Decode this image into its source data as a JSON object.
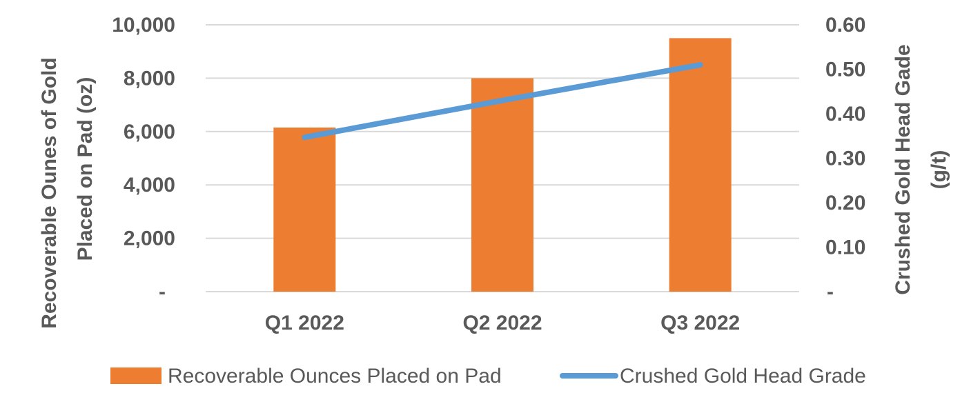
{
  "chart_data": {
    "type": "bar",
    "categories": [
      "Q1 2022",
      "Q2 2022",
      "Q3 2022"
    ],
    "series": [
      {
        "name": "Recoverable Ounces Placed on Pad",
        "type": "bar",
        "axis": "left",
        "color": "#ED7D31",
        "values": [
          6150,
          8000,
          9500
        ]
      },
      {
        "name": "Crushed Gold Head Grade",
        "type": "line",
        "axis": "right",
        "color": "#5B9BD5",
        "values": [
          0.347,
          0.43,
          0.51
        ]
      }
    ],
    "left_axis": {
      "label_lines": [
        "Recoverable Ounes of Gold",
        "Placed on Pad (oz)"
      ],
      "ylim": [
        0,
        10000
      ],
      "ticks": [
        {
          "value": 0,
          "label": "-"
        },
        {
          "value": 2000,
          "label": "2,000"
        },
        {
          "value": 4000,
          "label": "4,000"
        },
        {
          "value": 6000,
          "label": "6,000"
        },
        {
          "value": 8000,
          "label": "8,000"
        },
        {
          "value": 10000,
          "label": "10,000"
        }
      ]
    },
    "right_axis": {
      "label_lines": [
        "Crushed Gold Head Gade",
        "(g/t)"
      ],
      "ylim": [
        0,
        0.6
      ],
      "ticks": [
        {
          "value": 0,
          "label": "-"
        },
        {
          "value": 0.1,
          "label": "0.10"
        },
        {
          "value": 0.2,
          "label": "0.20"
        },
        {
          "value": 0.3,
          "label": "0.30"
        },
        {
          "value": 0.4,
          "label": "0.40"
        },
        {
          "value": 0.5,
          "label": "0.50"
        },
        {
          "value": 0.6,
          "label": "0.60"
        }
      ]
    },
    "grid": true,
    "gridline_color": "#D9D9D9",
    "legend_position": "bottom"
  }
}
